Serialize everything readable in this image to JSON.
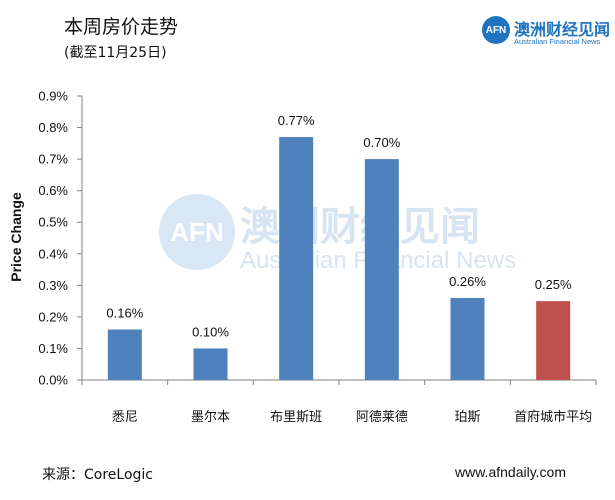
{
  "header": {
    "title": "本周房价走势",
    "subtitle": "(截至11月25日)"
  },
  "logo": {
    "mark": "AFN",
    "name_cn": "澳洲财经见闻",
    "name_en": "Australian Financial News"
  },
  "watermark": {
    "mark": "AFN",
    "name_cn": "澳洲财经见闻",
    "name_en": "Australian Financial News"
  },
  "footer": {
    "source": "来源：CoreLogic",
    "site": "www.afndaily.com"
  },
  "chart_data": {
    "type": "bar",
    "ylabel": "Price Change",
    "categories": [
      "悉尼",
      "墨尔本",
      "布里斯班",
      "阿德莱德",
      "珀斯",
      "首府城市平均"
    ],
    "values": [
      0.16,
      0.1,
      0.77,
      0.7,
      0.26,
      0.25
    ],
    "data_labels": [
      "0.16%",
      "0.10%",
      "0.77%",
      "0.70%",
      "0.26%",
      "0.25%"
    ],
    "ylim": [
      0,
      0.9
    ],
    "yticks": [
      0,
      0.1,
      0.2,
      0.3,
      0.4,
      0.5,
      0.6,
      0.7,
      0.8,
      0.9
    ],
    "ytick_labels": [
      "0.0%",
      "0.1%",
      "0.2%",
      "0.3%",
      "0.4%",
      "0.5%",
      "0.6%",
      "0.7%",
      "0.8%",
      "0.9%"
    ],
    "bar_colors": [
      "#4f81bd",
      "#4f81bd",
      "#4f81bd",
      "#4f81bd",
      "#4f81bd",
      "#c0504d"
    ],
    "grid": false,
    "legend": "none"
  }
}
